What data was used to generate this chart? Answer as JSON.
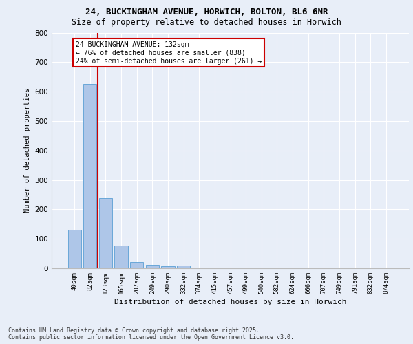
{
  "title_line1": "24, BUCKINGHAM AVENUE, HORWICH, BOLTON, BL6 6NR",
  "title_line2": "Size of property relative to detached houses in Horwich",
  "xlabel": "Distribution of detached houses by size in Horwich",
  "ylabel": "Number of detached properties",
  "categories": [
    "40sqm",
    "82sqm",
    "123sqm",
    "165sqm",
    "207sqm",
    "249sqm",
    "290sqm",
    "332sqm",
    "374sqm",
    "415sqm",
    "457sqm",
    "499sqm",
    "540sqm",
    "582sqm",
    "624sqm",
    "666sqm",
    "707sqm",
    "749sqm",
    "791sqm",
    "832sqm",
    "874sqm"
  ],
  "values": [
    130,
    625,
    238,
    78,
    22,
    12,
    8,
    10,
    0,
    0,
    0,
    0,
    0,
    0,
    0,
    0,
    0,
    0,
    0,
    0,
    0
  ],
  "bar_color": "#aec6e8",
  "bar_edge_color": "#5a9fd4",
  "background_color": "#e8eef8",
  "grid_color": "#ffffff",
  "vline_color": "#cc0000",
  "annotation_text": "24 BUCKINGHAM AVENUE: 132sqm\n← 76% of detached houses are smaller (838)\n24% of semi-detached houses are larger (261) →",
  "annotation_box_color": "#ffffff",
  "annotation_box_edge_color": "#cc0000",
  "ylim": [
    0,
    800
  ],
  "yticks": [
    0,
    100,
    200,
    300,
    400,
    500,
    600,
    700,
    800
  ],
  "footer_line1": "Contains HM Land Registry data © Crown copyright and database right 2025.",
  "footer_line2": "Contains public sector information licensed under the Open Government Licence v3.0."
}
